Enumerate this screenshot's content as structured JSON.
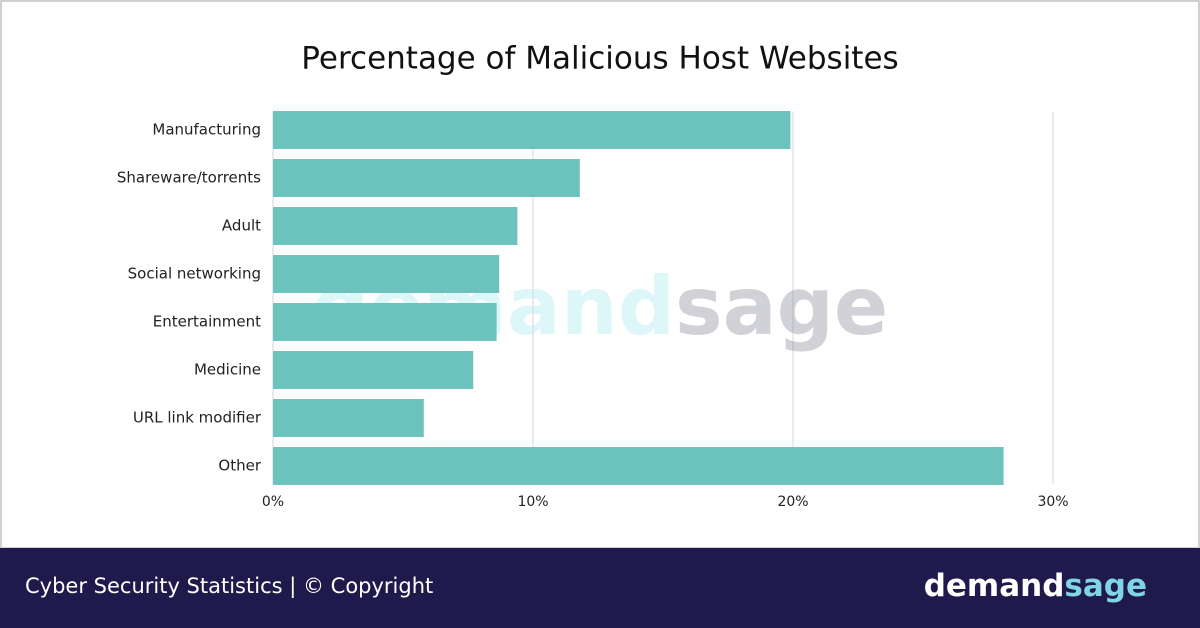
{
  "chart_data": {
    "type": "bar",
    "orientation": "horizontal",
    "title": "Percentage of Malicious Host Websites",
    "categories": [
      "Manufacturing",
      "Shareware/torrents",
      "Adult",
      "Social networking",
      "Entertainment",
      "Medicine",
      "URL link modifier",
      "Other"
    ],
    "values": [
      19.9,
      11.8,
      9.4,
      8.7,
      8.6,
      7.7,
      5.8,
      28.1
    ],
    "color": "#6cc2bd",
    "xlim": [
      0,
      30
    ],
    "xticks": [
      {
        "value": 0,
        "label": "0%"
      },
      {
        "value": 10,
        "label": "10%"
      },
      {
        "value": 20,
        "label": "20%"
      },
      {
        "value": 30,
        "label": "30%"
      }
    ],
    "grid": true
  },
  "watermark": [
    "demand",
    "sage"
  ],
  "footer": {
    "caption": "Cyber Security Statistics | © Copyright",
    "logo": [
      "demand",
      "sage"
    ]
  }
}
